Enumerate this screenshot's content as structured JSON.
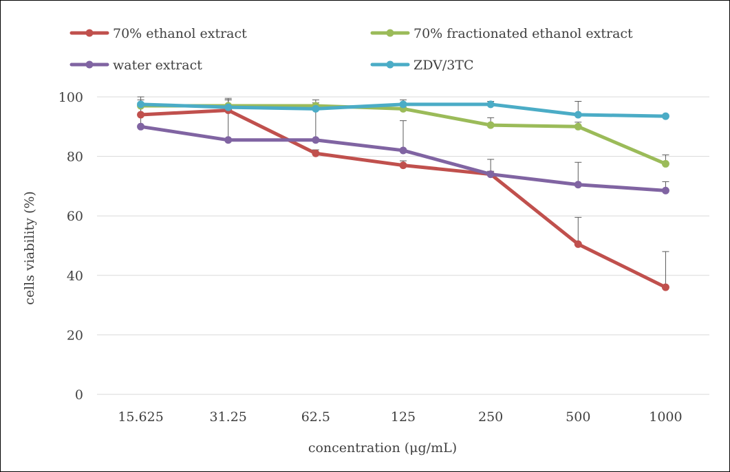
{
  "chart_data": {
    "type": "line",
    "title": "",
    "xlabel": "concentration (μg/mL)",
    "ylabel": "cells viability (%)",
    "ylim": [
      0,
      100
    ],
    "yticks": [
      0,
      20,
      40,
      60,
      80,
      100
    ],
    "grid": "horizontal",
    "legend_position": "top",
    "categories": [
      "15.625",
      "31.25",
      "62.5",
      "125",
      "250",
      "500",
      "1000"
    ],
    "series": [
      {
        "name": "70% ethanol extract",
        "color": "#c0504d",
        "values": [
          94,
          95.5,
          81,
          77,
          74,
          50.5,
          36
        ],
        "error": [
          3,
          3.5,
          1.2,
          1.5,
          1,
          9,
          12
        ]
      },
      {
        "name": "70% fractionated ethanol extract",
        "color": "#9bbb59",
        "values": [
          97,
          97,
          97,
          96,
          90.5,
          90,
          77.5
        ],
        "error": [
          2,
          2,
          1,
          1.5,
          2.5,
          1.5,
          3
        ]
      },
      {
        "name": "water extract",
        "color": "#8064a2",
        "values": [
          90,
          85.5,
          85.5,
          82,
          74,
          70.5,
          68.5
        ],
        "error": [
          7,
          11,
          11,
          10,
          5,
          7.5,
          3
        ]
      },
      {
        "name": "ZDV/3TC",
        "color": "#4bacc6",
        "values": [
          97.5,
          96.5,
          96,
          97.5,
          97.5,
          94,
          93.5
        ],
        "error": [
          2.5,
          3,
          3,
          1.5,
          1,
          4.5,
          0.5
        ]
      }
    ]
  }
}
